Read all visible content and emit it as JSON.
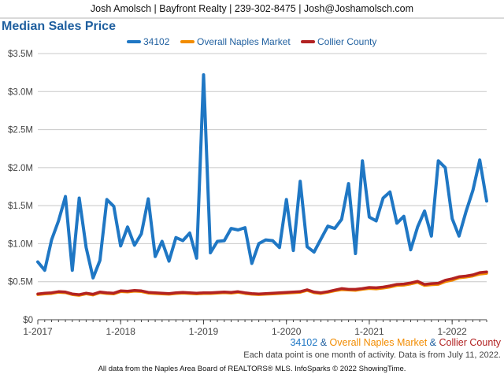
{
  "header": {
    "text": "Josh Amolsch | Bayfront Realty | 239-302-8475 | Josh@Joshamolsch.com"
  },
  "title": "Median Sales Price",
  "footer": {
    "series_line": {
      "s1": "34102",
      "amp1": "&",
      "s2": "Overall Naples Market",
      "amp2": "&",
      "s3": "Collier County"
    },
    "note": "Each data point is one month of activity. Data is from July 11, 2022.",
    "source": "All data from the Naples Area Board of REALTORS® MLS. InfoSparks © 2022 ShowingTime."
  },
  "chart_data": {
    "type": "line",
    "title": "Median Sales Price",
    "legend_position": "top-center",
    "grid": true,
    "ylim": [
      0,
      3500000
    ],
    "y_ticks": [
      0,
      500000,
      1000000,
      1500000,
      2000000,
      2500000,
      3000000,
      3500000
    ],
    "y_tick_labels": [
      "$0",
      "$0.5M",
      "$1.0M",
      "$1.5M",
      "$2.0M",
      "$2.5M",
      "$3.0M",
      "$3.5M"
    ],
    "x_tick_labels": [
      "1-2017",
      "1-2018",
      "1-2019",
      "1-2020",
      "1-2021",
      "1-2022"
    ],
    "x_tick_months": [
      "2017-01",
      "2018-01",
      "2019-01",
      "2020-01",
      "2021-01",
      "2022-01"
    ],
    "x": [
      "2017-01",
      "2017-02",
      "2017-03",
      "2017-04",
      "2017-05",
      "2017-06",
      "2017-07",
      "2017-08",
      "2017-09",
      "2017-10",
      "2017-11",
      "2017-12",
      "2018-01",
      "2018-02",
      "2018-03",
      "2018-04",
      "2018-05",
      "2018-06",
      "2018-07",
      "2018-08",
      "2018-09",
      "2018-10",
      "2018-11",
      "2018-12",
      "2019-01",
      "2019-02",
      "2019-03",
      "2019-04",
      "2019-05",
      "2019-06",
      "2019-07",
      "2019-08",
      "2019-09",
      "2019-10",
      "2019-11",
      "2019-12",
      "2020-01",
      "2020-02",
      "2020-03",
      "2020-04",
      "2020-05",
      "2020-06",
      "2020-07",
      "2020-08",
      "2020-09",
      "2020-10",
      "2020-11",
      "2020-12",
      "2021-01",
      "2021-02",
      "2021-03",
      "2021-04",
      "2021-05",
      "2021-06",
      "2021-07",
      "2021-08",
      "2021-09",
      "2021-10",
      "2021-11",
      "2021-12",
      "2022-01",
      "2022-02",
      "2022-03",
      "2022-04",
      "2022-05",
      "2022-06"
    ],
    "series": [
      {
        "name": "34102",
        "color": "#1f77c4",
        "values": [
          760000,
          650000,
          1050000,
          1300000,
          1620000,
          650000,
          1600000,
          950000,
          550000,
          780000,
          1580000,
          1490000,
          970000,
          1220000,
          980000,
          1130000,
          1590000,
          830000,
          1030000,
          770000,
          1080000,
          1040000,
          1140000,
          810000,
          3220000,
          880000,
          1030000,
          1040000,
          1200000,
          1180000,
          1210000,
          740000,
          1000000,
          1050000,
          1040000,
          950000,
          1580000,
          910000,
          1820000,
          960000,
          890000,
          1060000,
          1230000,
          1200000,
          1320000,
          1790000,
          870000,
          2090000,
          1350000,
          1300000,
          1600000,
          1680000,
          1270000,
          1360000,
          920000,
          1220000,
          1430000,
          1100000,
          2090000,
          2000000,
          1330000,
          1100000,
          1420000,
          1700000,
          2100000,
          1560000
        ]
      },
      {
        "name": "Overall Naples Market",
        "color": "#f28c00",
        "values": [
          330000,
          340000,
          345000,
          360000,
          355000,
          330000,
          320000,
          340000,
          325000,
          355000,
          345000,
          340000,
          370000,
          365000,
          375000,
          370000,
          350000,
          345000,
          340000,
          335000,
          345000,
          350000,
          345000,
          340000,
          345000,
          345000,
          350000,
          355000,
          350000,
          360000,
          345000,
          335000,
          330000,
          335000,
          340000,
          345000,
          350000,
          355000,
          360000,
          385000,
          355000,
          345000,
          360000,
          380000,
          395000,
          390000,
          385000,
          400000,
          410000,
          405000,
          415000,
          430000,
          450000,
          455000,
          470000,
          490000,
          450000,
          460000,
          465000,
          500000,
          520000,
          550000,
          560000,
          575000,
          600000,
          610000
        ]
      },
      {
        "name": "Collier County",
        "color": "#b22222",
        "values": [
          340000,
          350000,
          355000,
          370000,
          365000,
          340000,
          330000,
          350000,
          335000,
          365000,
          355000,
          350000,
          380000,
          375000,
          385000,
          380000,
          360000,
          355000,
          350000,
          345000,
          355000,
          360000,
          355000,
          350000,
          355000,
          355000,
          360000,
          365000,
          360000,
          370000,
          355000,
          345000,
          340000,
          345000,
          350000,
          355000,
          360000,
          365000,
          370000,
          395000,
          365000,
          355000,
          370000,
          390000,
          410000,
          400000,
          400000,
          410000,
          425000,
          420000,
          430000,
          445000,
          465000,
          470000,
          485000,
          505000,
          465000,
          475000,
          480000,
          520000,
          540000,
          565000,
          575000,
          590000,
          620000,
          630000
        ]
      }
    ]
  }
}
